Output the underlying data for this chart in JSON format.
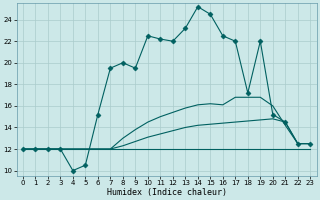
{
  "xlabel": "Humidex (Indice chaleur)",
  "xlim": [
    -0.5,
    23.5
  ],
  "ylim": [
    9.5,
    25.5
  ],
  "yticks": [
    10,
    12,
    14,
    16,
    18,
    20,
    22,
    24
  ],
  "xticks": [
    0,
    1,
    2,
    3,
    4,
    5,
    6,
    7,
    8,
    9,
    10,
    11,
    12,
    13,
    14,
    15,
    16,
    17,
    18,
    19,
    20,
    21,
    22,
    23
  ],
  "bg_color": "#cce8e8",
  "grid_color": "#aacccc",
  "line_color": "#006060",
  "series": [
    {
      "x": [
        0,
        1,
        2,
        3,
        4,
        5,
        6,
        7,
        8,
        9,
        10,
        11,
        12,
        13,
        14,
        15,
        16,
        17,
        18,
        19,
        20,
        21,
        22,
        23
      ],
      "y": [
        12,
        12,
        12,
        12,
        12,
        12,
        12,
        12,
        12,
        12,
        12,
        12,
        12,
        12,
        12,
        12,
        12,
        12,
        12,
        12,
        12,
        12,
        12,
        12
      ],
      "marker": false,
      "linestyle": "-",
      "lw": 0.8
    },
    {
      "x": [
        0,
        1,
        2,
        3,
        4,
        5,
        6,
        7,
        8,
        9,
        10,
        11,
        12,
        13,
        14,
        15,
        16,
        17,
        18,
        19,
        20,
        21,
        22,
        23
      ],
      "y": [
        12,
        12,
        12,
        12,
        12,
        12,
        12,
        12,
        12.3,
        12.7,
        13.1,
        13.4,
        13.7,
        14.0,
        14.2,
        14.3,
        14.4,
        14.5,
        14.6,
        14.7,
        14.8,
        14.5,
        12.5,
        12.5
      ],
      "marker": false,
      "linestyle": "-",
      "lw": 0.8
    },
    {
      "x": [
        0,
        1,
        2,
        3,
        4,
        5,
        6,
        7,
        8,
        9,
        10,
        11,
        12,
        13,
        14,
        15,
        16,
        17,
        18,
        19,
        20,
        21,
        22,
        23
      ],
      "y": [
        12,
        12,
        12,
        12,
        12,
        12,
        12,
        12,
        13.0,
        13.8,
        14.5,
        15.0,
        15.4,
        15.8,
        16.1,
        16.2,
        16.1,
        16.8,
        16.8,
        16.8,
        16.0,
        14.2,
        12.5,
        12.5
      ],
      "marker": false,
      "linestyle": "-",
      "lw": 0.8
    },
    {
      "x": [
        0,
        1,
        2,
        3,
        4,
        5,
        6,
        7,
        8,
        9,
        10,
        11,
        12,
        13,
        14,
        15,
        16,
        17,
        18,
        19,
        20,
        21,
        22,
        23
      ],
      "y": [
        12,
        12,
        12,
        12,
        10,
        10.5,
        15.2,
        19.5,
        20.0,
        19.5,
        22.5,
        22.2,
        22.0,
        23.2,
        25.2,
        24.5,
        22.5,
        22.0,
        17.2,
        22.0,
        15.2,
        14.5,
        12.5,
        12.5
      ],
      "marker": true,
      "linestyle": "-",
      "lw": 0.8
    }
  ]
}
